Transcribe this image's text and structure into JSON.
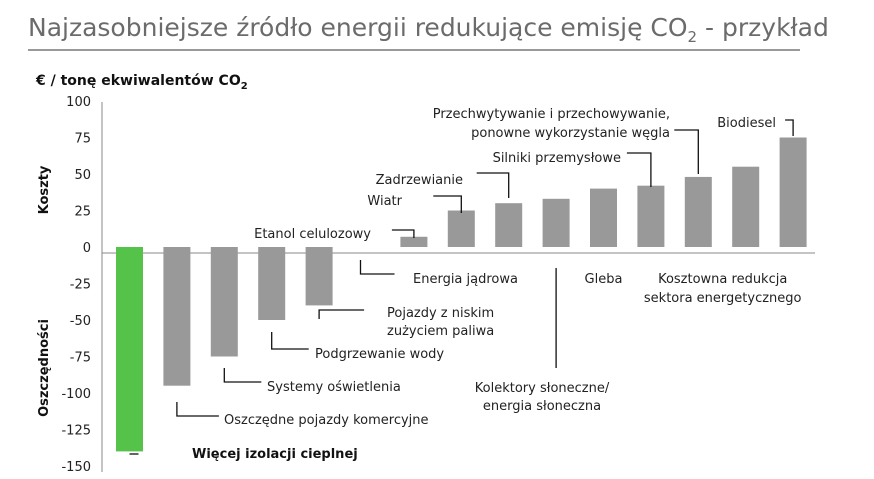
{
  "chart_data": {
    "type": "bar",
    "title": "Najzasobniejsze źródło energii redukujące emisję CO",
    "title_sub": "2",
    "title_suffix": " - przykład",
    "ylabel": "€ / tonę ekwiwalentów CO",
    "ylabel_sub": "2",
    "side_labels": {
      "positive": "Koszty",
      "negative": "Oszczędności"
    },
    "ylim": [
      -150,
      100
    ],
    "yticks": [
      100,
      75,
      50,
      25,
      0,
      -25,
      -50,
      -75,
      -100,
      -125,
      -150
    ],
    "grid": false,
    "colors": {
      "highlight": "#55c24a",
      "bar": "#999999",
      "title_rule": "#999999"
    },
    "categories": [
      "Więcej izolacji cieplnej",
      "Oszczędne pojazdy komercyjne",
      "Systemy oświetlenia",
      "Podgrzewanie wody",
      "Pojazdy z niskim zużyciem paliwa",
      "Energia jądrowa",
      "Etanol celulozowy",
      "Wiatr",
      "Zadrzewianie",
      "Kolektory słoneczne/ energia słoneczna",
      "Gleba",
      "Silniki przemysłowe",
      "Przechwytywanie i przechowywanie, ponowne wykorzystanie węgla",
      "Kosztowna redukcja sektora energetycznego",
      "Biodiesel"
    ],
    "values": [
      -140,
      -95,
      -75,
      -50,
      -40,
      0,
      7,
      25,
      30,
      33,
      40,
      42,
      48,
      55,
      75
    ],
    "highlight_index": 0
  },
  "annotations": [
    {
      "lines": [
        "Więcej izolacji cieplnej"
      ],
      "bold": true
    },
    {
      "lines": [
        "Oszczędne pojazdy komercyjne"
      ]
    },
    {
      "lines": [
        "Systemy oświetlenia"
      ]
    },
    {
      "lines": [
        "Podgrzewanie wody"
      ]
    },
    {
      "lines": [
        "Pojazdy z niskim",
        "zużyciem paliwa"
      ]
    },
    {
      "lines": [
        "Energia jądrowa"
      ]
    },
    {
      "lines": [
        "Etanol celulozowy"
      ]
    },
    {
      "lines": [
        "Wiatr"
      ]
    },
    {
      "lines": [
        "Zadrzewianie"
      ]
    },
    {
      "lines": [
        "Kolektory słoneczne/",
        "energia słoneczna"
      ]
    },
    {
      "lines": [
        "Gleba"
      ]
    },
    {
      "lines": [
        "Silniki przemysłowe"
      ]
    },
    {
      "lines": [
        "Przechwytywanie i przechowywanie,",
        "ponowne wykorzystanie węgla"
      ]
    },
    {
      "lines": [
        "Kosztowna redukcja",
        "sektora energetycznego"
      ]
    },
    {
      "lines": [
        "Biodiesel"
      ]
    }
  ]
}
